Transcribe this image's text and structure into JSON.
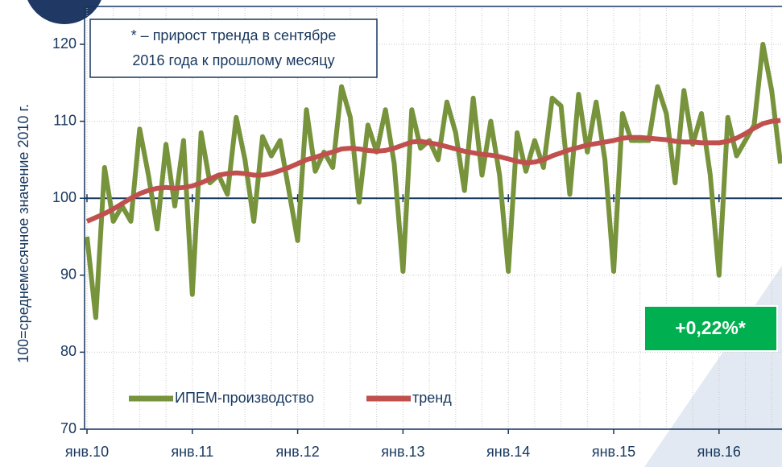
{
  "chart_data": {
    "type": "line",
    "y_label": "100=среднемесячное значение 2010 г.",
    "annotation": [
      "* – прирост тренда в сентябре",
      "2016 года к прошлому месяцу"
    ],
    "highlight": "+0,22%*",
    "categories": [
      "янв.10",
      null,
      null,
      null,
      null,
      null,
      null,
      null,
      null,
      null,
      null,
      null,
      "янв.11",
      null,
      null,
      null,
      null,
      null,
      null,
      null,
      null,
      null,
      null,
      null,
      "янв.12",
      null,
      null,
      null,
      null,
      null,
      null,
      null,
      null,
      null,
      null,
      null,
      "янв.13",
      null,
      null,
      null,
      null,
      null,
      null,
      null,
      null,
      null,
      null,
      null,
      "янв.14",
      null,
      null,
      null,
      null,
      null,
      null,
      null,
      null,
      null,
      null,
      null,
      "янв.15",
      null,
      null,
      null,
      null,
      null,
      null,
      null,
      null,
      null,
      null,
      null,
      "янв.16",
      null,
      null,
      null,
      null,
      null,
      null,
      null
    ],
    "series": [
      {
        "name": "ИПЕМ-производство",
        "color": "#77933c",
        "values": [
          95,
          84.5,
          104,
          97,
          99,
          97,
          109,
          103,
          96,
          107,
          99,
          107.5,
          87.5,
          108.5,
          102,
          103,
          100.5,
          110.5,
          105,
          97,
          108,
          105.5,
          107.5,
          101,
          94.5,
          111.5,
          103.5,
          106,
          104,
          114.5,
          110.5,
          99.5,
          109.5,
          106,
          111.5,
          104.5,
          90.5,
          111.5,
          106.5,
          107.5,
          105,
          112.5,
          108.5,
          101,
          113,
          103,
          110,
          103,
          90.5,
          108.5,
          103.5,
          107.5,
          104,
          113,
          112,
          100.5,
          113.5,
          106,
          112.5,
          105,
          90.5,
          111,
          107.5,
          107.5,
          107.5,
          114.5,
          111,
          102,
          114,
          107,
          111,
          103,
          90,
          110.5,
          105.5,
          107.5,
          109.5,
          120,
          114,
          104.5
        ]
      },
      {
        "name": "тренд",
        "color": "#c0504d",
        "values": [
          97,
          97.5,
          98,
          98.6,
          99.3,
          100,
          100.6,
          101,
          101.3,
          101.4,
          101.3,
          101.4,
          101.6,
          102,
          102.5,
          103,
          103.2,
          103.3,
          103.2,
          103,
          103,
          103.2,
          103.6,
          104,
          104.5,
          105,
          105.3,
          105.7,
          106,
          106.4,
          106.5,
          106.4,
          106.2,
          106.1,
          106.2,
          106.5,
          106.9,
          107.3,
          107.4,
          107.2,
          107,
          106.7,
          106.4,
          106.1,
          105.9,
          105.7,
          105.6,
          105.4,
          105.1,
          104.8,
          104.6,
          104.7,
          105,
          105.5,
          105.9,
          106.3,
          106.6,
          106.9,
          107.1,
          107.3,
          107.5,
          107.8,
          107.9,
          107.9,
          107.8,
          107.7,
          107.6,
          107.4,
          107.3,
          107.3,
          107.2,
          107.2,
          107.2,
          107.4,
          107.8,
          108.4,
          109.1,
          109.7,
          110,
          110.1
        ]
      }
    ],
    "ylim": [
      70,
      120
    ],
    "yticks": [
      70,
      80,
      90,
      100,
      110,
      120
    ],
    "baseline": 100,
    "grid": true
  }
}
